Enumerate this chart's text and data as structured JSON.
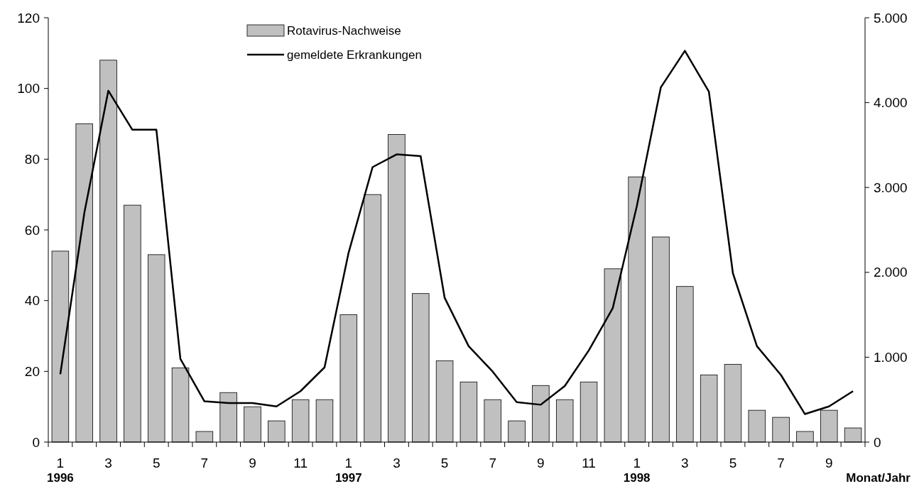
{
  "chart_data": {
    "type": "bar",
    "xlabel": "Monat/Jahr",
    "categories": [
      "1\n1996",
      null,
      "3",
      null,
      "5",
      null,
      "7",
      null,
      "9",
      null,
      "11",
      null,
      "1\n1997",
      null,
      "3",
      null,
      "5",
      null,
      "7",
      null,
      "9",
      null,
      "11",
      null,
      "1\n1998",
      null,
      "3",
      null,
      "5",
      null,
      "7",
      null,
      "9",
      null
    ],
    "series": [
      {
        "name": "Rotavirus-Nachweise",
        "color": "#c0c0c0",
        "values": [
          54,
          90,
          108,
          67,
          53,
          21,
          3,
          14,
          10,
          6,
          12,
          12,
          36,
          70,
          87,
          42,
          23,
          17,
          12,
          6,
          16,
          12,
          17,
          49,
          75,
          58,
          44,
          19,
          22,
          9,
          7,
          3,
          9,
          4
        ]
      },
      {
        "name": "gemeldete Erkrankungen",
        "type": "line",
        "axis": "y2",
        "color": "#000000",
        "values": [
          800,
          2700,
          4140,
          3680,
          3680,
          980,
          480,
          460,
          460,
          420,
          600,
          880,
          2230,
          3240,
          3390,
          3370,
          1700,
          1130,
          830,
          470,
          440,
          660,
          1080,
          1580,
          2780,
          4180,
          4610,
          4130,
          1990,
          1130,
          790,
          330,
          420,
          600
        ]
      }
    ],
    "ylim": [
      0,
      120
    ],
    "yticks": [
      0,
      20,
      40,
      60,
      80,
      100,
      120
    ],
    "y2lim": [
      0,
      5000
    ],
    "y2ticks": [
      {
        "value": 0,
        "label": "0"
      },
      {
        "value": 1000,
        "label": "1.000"
      },
      {
        "value": 2000,
        "label": "2.000"
      },
      {
        "value": 3000,
        "label": "3.000"
      },
      {
        "value": 4000,
        "label": "4.000"
      },
      {
        "value": 5000,
        "label": "5.000"
      }
    ],
    "legend": "top",
    "marker": "none",
    "line_style": "solid",
    "grid": false
  }
}
